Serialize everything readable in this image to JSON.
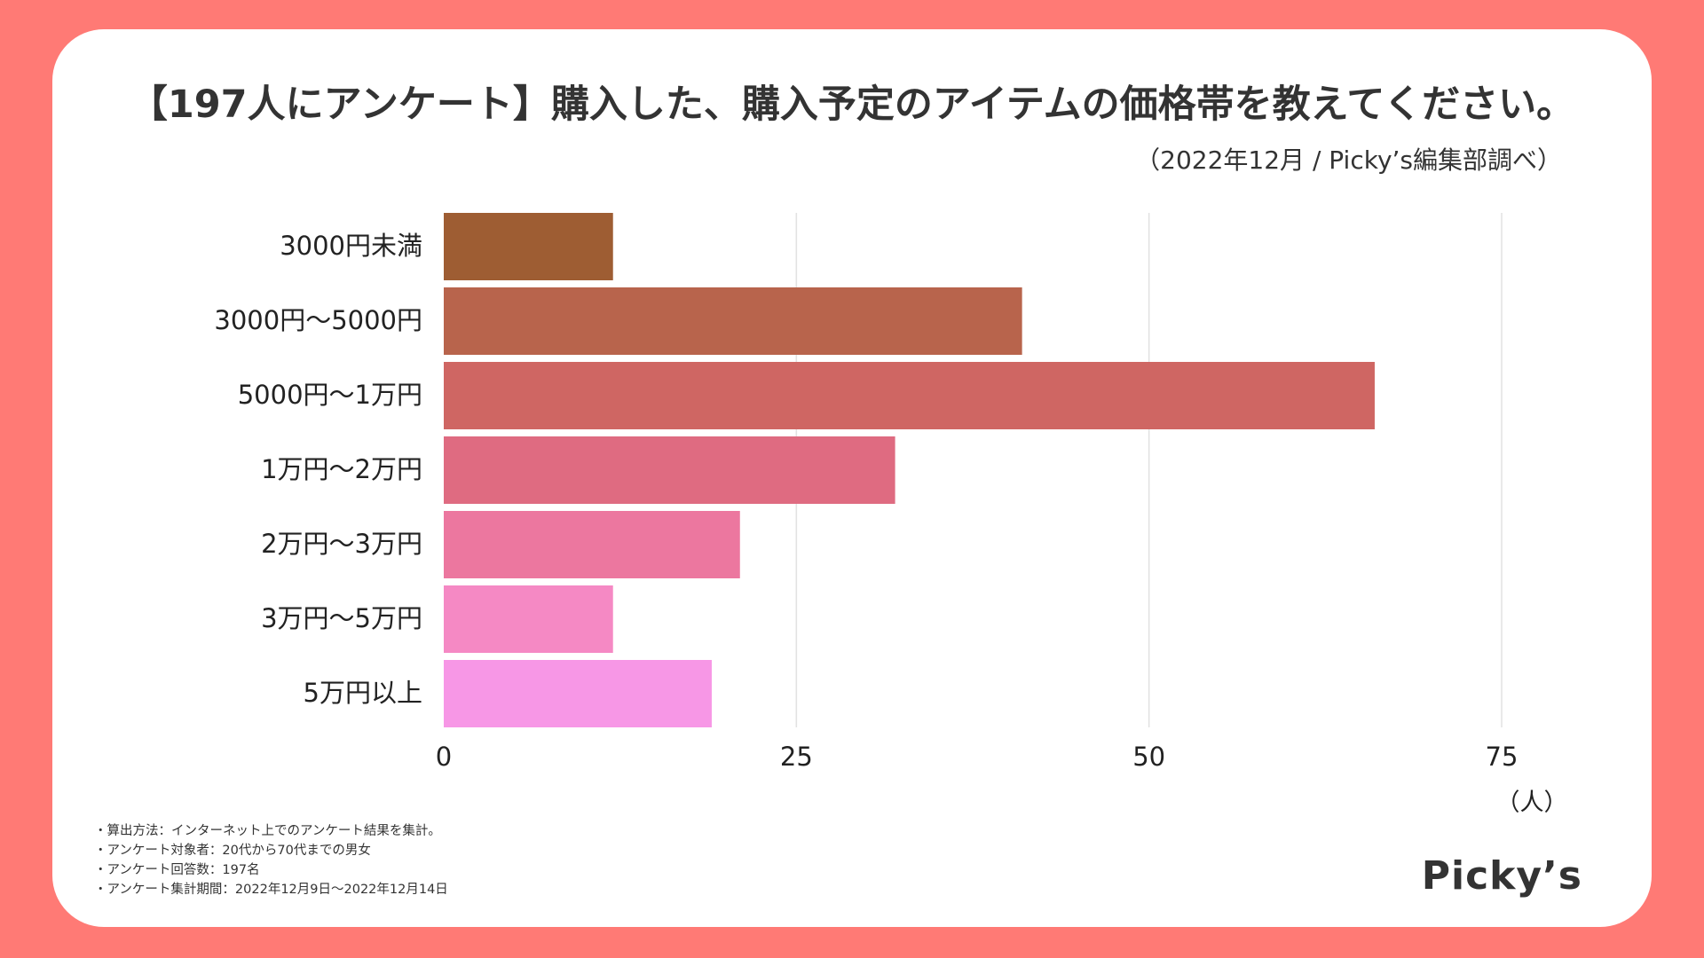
{
  "title": "【197人にアンケート】購入した、購入予定のアイテムの価格帯を教えてください。",
  "subtitle": "（2022年12月 / Picky’s編集部調べ）",
  "chart_data": {
    "type": "bar",
    "orientation": "horizontal",
    "title": "【197人にアンケート】購入した、購入予定のアイテムの価格帯を教えてください。",
    "categories": [
      "3000円未満",
      "3000円〜5000円",
      "5000円〜1万円",
      "1万円〜2万円",
      "2万円〜3万円",
      "3万円〜5万円",
      "5万円以上"
    ],
    "values": [
      12,
      41,
      66,
      32,
      21,
      12,
      19
    ],
    "colors": [
      "#9e5d33",
      "#b8644c",
      "#cf6663",
      "#df6b81",
      "#ec779f",
      "#f589c4",
      "#f797e6"
    ],
    "xlim": [
      0,
      75
    ],
    "xticks": [
      0,
      25,
      50,
      75
    ],
    "xticklabels": [
      "0",
      "25",
      "50",
      "75"
    ],
    "xlabel": "（人）",
    "ylabel": "",
    "grid": true
  },
  "notes": [
    "・算出方法：インターネット上でのアンケート結果を集計。",
    "・アンケート対象者：20代から70代までの男女",
    "・アンケート回答数：197名",
    "・アンケート集計期間：2022年12月9日〜2022年12月14日"
  ],
  "logo": "Picky’s"
}
